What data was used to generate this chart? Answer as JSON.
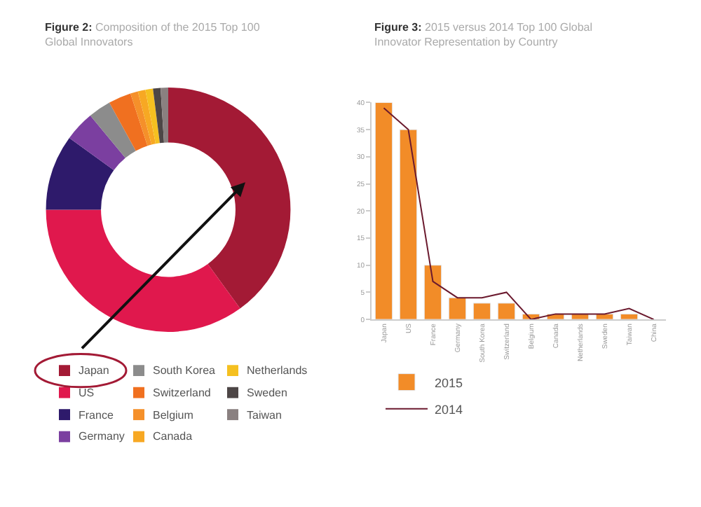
{
  "chart_data": [
    {
      "type": "donut",
      "title": "Figure 2: Composition of the 2015 Top 100 Global Innovators",
      "categories": [
        "Japan",
        "US",
        "France",
        "Germany",
        "South Korea",
        "Switzerland",
        "Belgium",
        "Canada",
        "Netherlands",
        "Sweden",
        "Taiwan"
      ],
      "values": [
        40,
        35,
        10,
        4,
        3,
        3,
        1,
        1,
        1,
        1,
        1
      ],
      "colors": [
        "#a31a35",
        "#e0184d",
        "#2e1a6b",
        "#7b3fa0",
        "#8c8c8c",
        "#f07020",
        "#f5902a",
        "#f7a823",
        "#f5c020",
        "#4d4646",
        "#8a8080"
      ],
      "legend": "bottom"
    },
    {
      "type": "bar",
      "title": "Figure 3: 2015 versus 2014 Top 100 Global Innovator Representation by Country",
      "categories": [
        "Japan",
        "US",
        "France",
        "Germany",
        "South Korea",
        "Switzerland",
        "Belgium",
        "Canada",
        "Netherlands",
        "Sweden",
        "Taiwan",
        "China"
      ],
      "series": [
        {
          "name": "2015",
          "color": "#f28c28",
          "values": [
            40,
            35,
            10,
            4,
            3,
            3,
            1,
            1,
            1,
            1,
            1,
            null
          ]
        },
        {
          "name": "2014",
          "type": "line",
          "color": "#6b1a2e",
          "values": [
            39,
            35,
            7,
            4,
            4,
            5,
            0,
            1,
            1,
            1,
            2,
            0
          ]
        }
      ],
      "ylim": [
        0,
        40
      ],
      "yticks": [
        0,
        5,
        10,
        15,
        20,
        25,
        30,
        35,
        40
      ],
      "grid": false,
      "legend": "bottom left",
      "marker": "none"
    }
  ]
}
